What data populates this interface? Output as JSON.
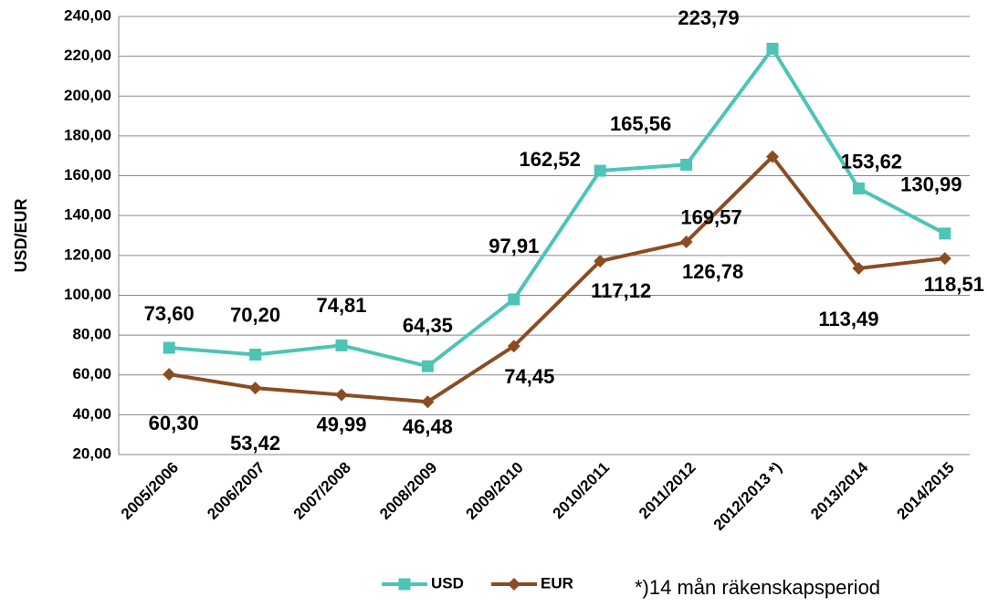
{
  "chart_data": {
    "type": "line",
    "ylabel": "USD/EUR",
    "categories": [
      "2005/2006",
      "2006/2007",
      "2007/2008",
      "2008/2009",
      "2009/2010",
      "2010/2011",
      "2011/2012",
      "2012/2013 *)",
      "2013/2014",
      "2014/2015"
    ],
    "series": [
      {
        "name": "USD",
        "color": "#4cc4b6",
        "marker": "square",
        "values": [
          73.6,
          70.2,
          74.81,
          64.35,
          97.91,
          162.52,
          165.56,
          223.79,
          153.62,
          130.99
        ],
        "value_labels": [
          "73,60",
          "70,20",
          "74,81",
          "64,35",
          "97,91",
          "162,52",
          "165,56",
          "223,79",
          "153,62",
          "130,99"
        ]
      },
      {
        "name": "EUR",
        "color": "#8b4c22",
        "marker": "diamond",
        "values": [
          60.3,
          53.42,
          49.99,
          46.48,
          74.45,
          117.12,
          126.78,
          169.57,
          113.49,
          118.51
        ],
        "value_labels": [
          "60,30",
          "53,42",
          "49,99",
          "46,48",
          "74,45",
          "117,12",
          "126,78",
          "169,57",
          "113,49",
          "118,51"
        ]
      }
    ],
    "ylim": [
      20,
      240
    ],
    "yticks": [
      {
        "value": 20,
        "label": "20,00"
      },
      {
        "value": 40,
        "label": "40,00"
      },
      {
        "value": 60,
        "label": "60,00"
      },
      {
        "value": 80,
        "label": "80,00"
      },
      {
        "value": 100,
        "label": "100,00"
      },
      {
        "value": 120,
        "label": "120,00"
      },
      {
        "value": 140,
        "label": "140,00"
      },
      {
        "value": 160,
        "label": "160,00"
      },
      {
        "value": 180,
        "label": "180,00"
      },
      {
        "value": 200,
        "label": "200,00"
      },
      {
        "value": 220,
        "label": "220,00"
      },
      {
        "value": 240,
        "label": "240,00"
      }
    ],
    "grid": true,
    "legend": "bottom",
    "footnote": "*)14 mån räkenskapsperiod"
  }
}
